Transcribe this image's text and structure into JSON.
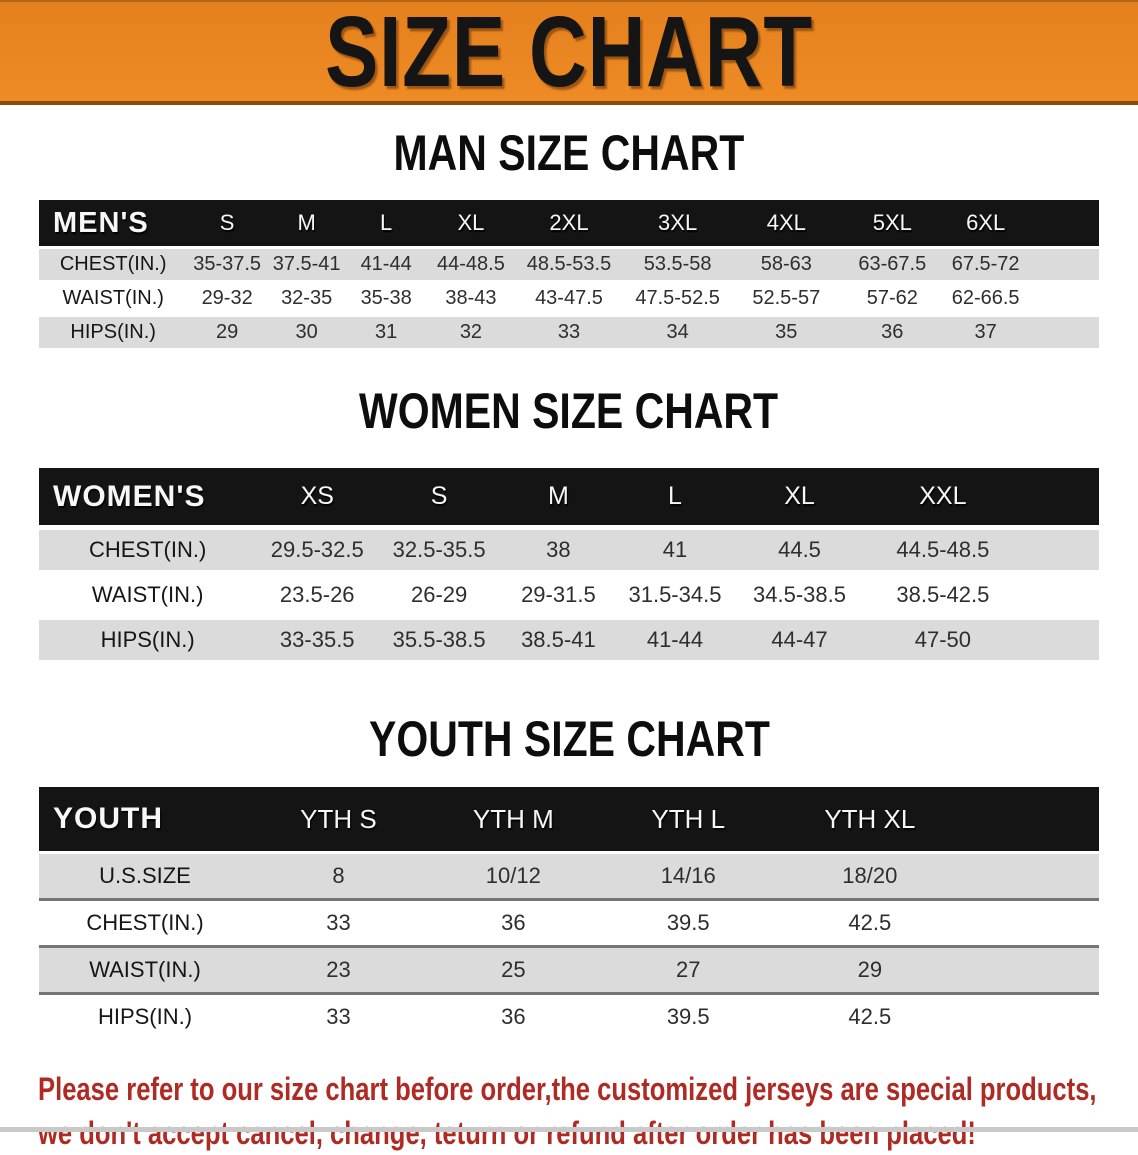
{
  "banner": {
    "title": "SIZE CHART",
    "bg_color": "#E8831F",
    "text_color": "#151515"
  },
  "sections": [
    {
      "heading": "MAN SIZE CHART",
      "table": {
        "corner_label": "MEN'S",
        "columns": [
          "S",
          "M",
          "L",
          "XL",
          "2XL",
          "3XL",
          "4XL",
          "5XL",
          "6XL"
        ],
        "rows": [
          {
            "label": "CHEST(IN.)",
            "values": [
              "35-37.5",
              "37.5-41",
              "41-44",
              "44-48.5",
              "48.5-53.5",
              "53.5-58",
              "58-63",
              "63-67.5",
              "67.5-72"
            ]
          },
          {
            "label": "WAIST(IN.)",
            "values": [
              "29-32",
              "32-35",
              "35-38",
              "38-43",
              "43-47.5",
              "47.5-52.5",
              "52.5-57",
              "57-62",
              "62-66.5"
            ]
          },
          {
            "label": "HIPS(IN.)",
            "values": [
              "29",
              "30",
              "31",
              "32",
              "33",
              "34",
              "35",
              "36",
              "37"
            ]
          }
        ]
      }
    },
    {
      "heading": "WOMEN SIZE CHART",
      "table": {
        "corner_label": "WOMEN'S",
        "columns": [
          "XS",
          "S",
          "M",
          "L",
          "XL",
          "XXL"
        ],
        "rows": [
          {
            "label": "CHEST(IN.)",
            "values": [
              "29.5-32.5",
              "32.5-35.5",
              "38",
              "41",
              "44.5",
              "44.5-48.5"
            ]
          },
          {
            "label": "WAIST(IN.)",
            "values": [
              "23.5-26",
              "26-29",
              "29-31.5",
              "31.5-34.5",
              "34.5-38.5",
              "38.5-42.5"
            ]
          },
          {
            "label": "HIPS(IN.)",
            "values": [
              "33-35.5",
              "35.5-38.5",
              "38.5-41",
              "41-44",
              "44-47",
              "47-50"
            ]
          }
        ]
      }
    },
    {
      "heading": "YOUTH SIZE CHART",
      "table": {
        "corner_label": "YOUTH",
        "columns": [
          "YTH S",
          "YTH M",
          "YTH L",
          "YTH XL"
        ],
        "rows": [
          {
            "label": "U.S.SIZE",
            "values": [
              "8",
              "10/12",
              "14/16",
              "18/20"
            ]
          },
          {
            "label": "CHEST(IN.)",
            "values": [
              "33",
              "36",
              "39.5",
              "42.5"
            ]
          },
          {
            "label": "WAIST(IN.)",
            "values": [
              "23",
              "25",
              "27",
              "29"
            ]
          },
          {
            "label": "HIPS(IN.)",
            "values": [
              "33",
              "36",
              "39.5",
              "42.5"
            ]
          }
        ]
      }
    }
  ],
  "disclaimer": {
    "line1": "Please refer to our size chart before order,the customized jerseys are special products,",
    "line2": "we don't accept cancel, change, teturn or refund after order has been placed!",
    "text_color": "#B02A24"
  },
  "colors": {
    "banner_orange": "#E8831F",
    "header_bar_black": "#141414",
    "row_gray": "#DBDBDB",
    "row_white": "#FFFFFF",
    "youth_row_divider": "#757575",
    "heading_black": "#0D0D0D"
  }
}
